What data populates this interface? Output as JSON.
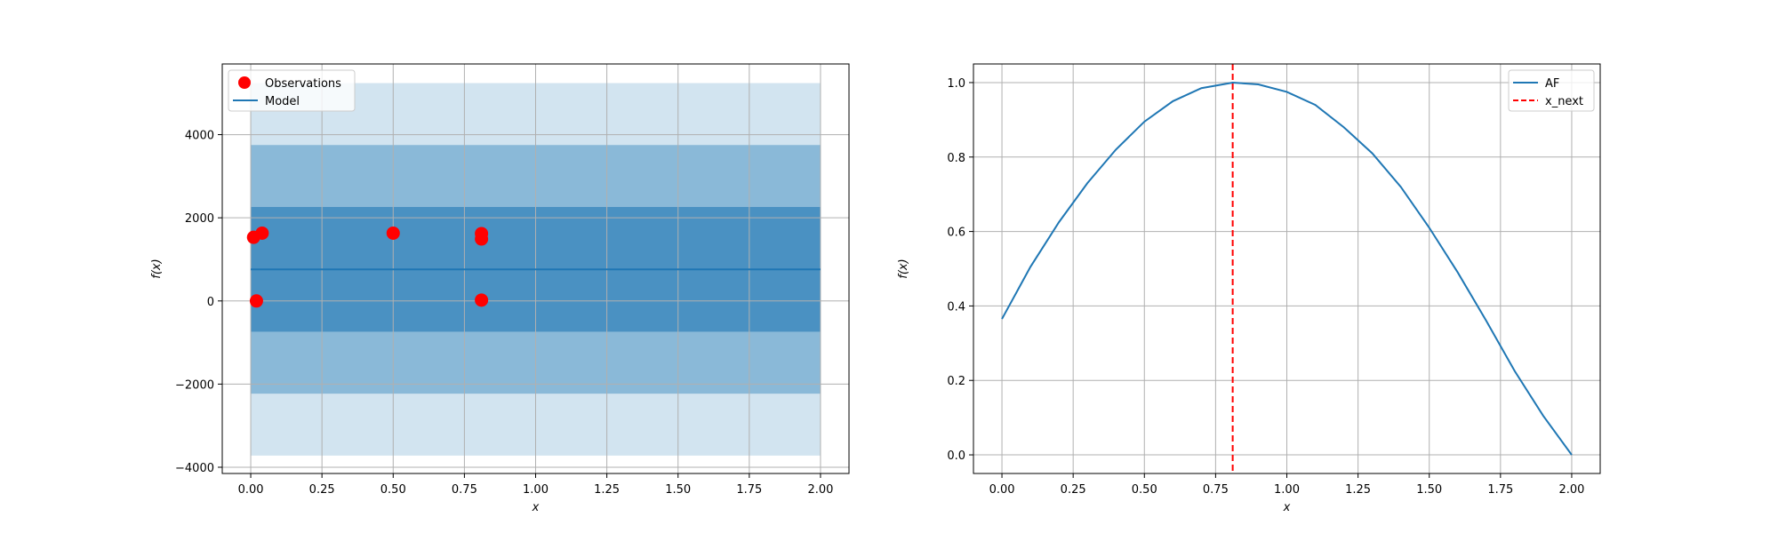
{
  "chart_data": [
    {
      "type": "scatter",
      "xlabel": "x",
      "ylabel": "f(x)",
      "xlim": [
        -0.1,
        2.1
      ],
      "ylim": [
        -4150,
        5700
      ],
      "xticks": [
        0.0,
        0.25,
        0.5,
        0.75,
        1.0,
        1.25,
        1.5,
        1.75,
        2.0
      ],
      "xtick_labels": [
        "0.00",
        "0.25",
        "0.50",
        "0.75",
        "1.00",
        "1.25",
        "1.50",
        "1.75",
        "2.00"
      ],
      "yticks": [
        -4000,
        -2000,
        0,
        2000,
        4000
      ],
      "ytick_labels": [
        "−4000",
        "−2000",
        "0",
        "2000",
        "4000"
      ],
      "grid": true,
      "legend_position": "top-left",
      "legend": [
        "Observations",
        "Model"
      ],
      "observations": {
        "name": "Observations",
        "color": "#ff0000",
        "x": [
          0.01,
          0.04,
          0.02,
          0.5,
          0.81,
          0.81,
          0.81
        ],
        "y": [
          1530,
          1630,
          0,
          1630,
          1620,
          1490,
          20
        ]
      },
      "model": {
        "name": "Model",
        "color": "#1f77b4",
        "x": [
          0,
          2
        ],
        "y": [
          760,
          760
        ]
      },
      "confidence_bands": [
        {
          "lower": -3720,
          "upper": 5240,
          "color": "#1f77b4",
          "opacity": 0.2
        },
        {
          "lower": -2230,
          "upper": 3750,
          "color": "#1f77b4",
          "opacity": 0.4
        },
        {
          "lower": -740,
          "upper": 2260,
          "color": "#1f77b4",
          "opacity": 0.6
        }
      ]
    },
    {
      "type": "line",
      "xlabel": "x",
      "ylabel": "f(x)",
      "xlim": [
        -0.1,
        2.1
      ],
      "ylim": [
        -0.05,
        1.05
      ],
      "xticks": [
        0.0,
        0.25,
        0.5,
        0.75,
        1.0,
        1.25,
        1.5,
        1.75,
        2.0
      ],
      "xtick_labels": [
        "0.00",
        "0.25",
        "0.50",
        "0.75",
        "1.00",
        "1.25",
        "1.50",
        "1.75",
        "2.00"
      ],
      "yticks": [
        0.0,
        0.2,
        0.4,
        0.6,
        0.8,
        1.0
      ],
      "ytick_labels": [
        "0.0",
        "0.2",
        "0.4",
        "0.6",
        "0.8",
        "1.0"
      ],
      "grid": true,
      "legend_position": "top-right",
      "legend": [
        "AF",
        "x_next"
      ],
      "series": [
        {
          "name": "AF",
          "color": "#1f77b4",
          "x": [
            0.0,
            0.1,
            0.2,
            0.3,
            0.4,
            0.5,
            0.6,
            0.7,
            0.81,
            0.9,
            1.0,
            1.1,
            1.2,
            1.3,
            1.4,
            1.5,
            1.6,
            1.7,
            1.8,
            1.9,
            2.0
          ],
          "y": [
            0.365,
            0.505,
            0.625,
            0.73,
            0.82,
            0.895,
            0.95,
            0.985,
            1.0,
            0.995,
            0.975,
            0.94,
            0.88,
            0.81,
            0.72,
            0.61,
            0.49,
            0.36,
            0.225,
            0.105,
            0.0
          ]
        }
      ],
      "vline": {
        "name": "x_next",
        "x": 0.81,
        "color": "#ff0000",
        "style": "dashed"
      }
    }
  ]
}
